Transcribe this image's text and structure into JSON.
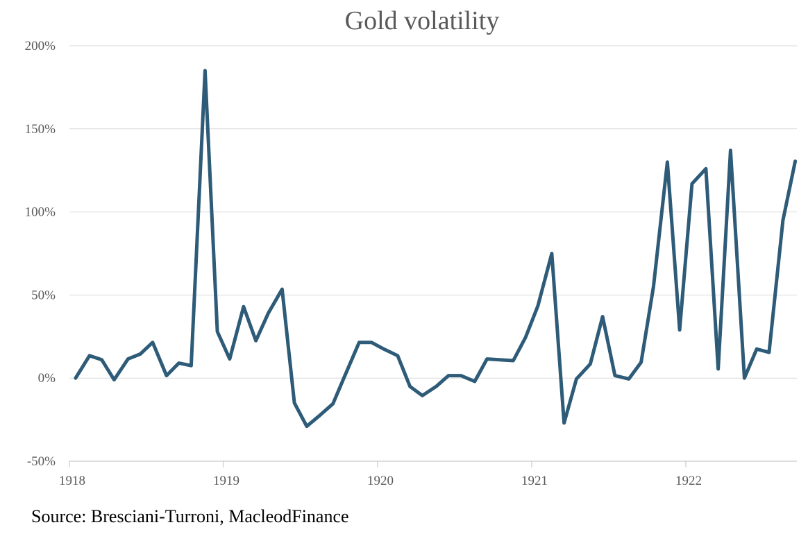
{
  "chart_data": {
    "type": "line",
    "title": "Gold volatility",
    "xlabel": "",
    "ylabel": "",
    "ylim": [
      -50,
      200
    ],
    "y_ticks": [
      -50,
      0,
      50,
      100,
      150,
      200
    ],
    "y_tick_labels": [
      "-50%",
      "0%",
      "50%",
      "100%",
      "150%",
      "200%"
    ],
    "x_ticks": [
      1918,
      1919,
      1920,
      1921,
      1922
    ],
    "x_tick_labels": [
      "1918",
      "1919",
      "1920",
      "1921",
      "1922"
    ],
    "xlim": [
      1918,
      1922.75
    ],
    "grid": true,
    "series": [
      {
        "name": "Gold volatility",
        "color": "#2e5b78",
        "x": [
          1918.04,
          1918.13,
          1918.21,
          1918.29,
          1918.38,
          1918.46,
          1918.54,
          1918.63,
          1918.71,
          1918.79,
          1918.88,
          1918.96,
          1919.04,
          1919.13,
          1919.21,
          1919.29,
          1919.38,
          1919.46,
          1919.54,
          1919.63,
          1919.71,
          1919.79,
          1919.88,
          1919.96,
          1920.04,
          1920.13,
          1920.21,
          1920.29,
          1920.38,
          1920.46,
          1920.54,
          1920.63,
          1920.71,
          1920.79,
          1920.88,
          1920.96,
          1921.04,
          1921.13,
          1921.21,
          1921.29,
          1921.38,
          1921.46,
          1921.54,
          1921.63,
          1921.71,
          1921.79,
          1921.88,
          1921.96,
          1922.04,
          1922.13,
          1922.21,
          1922.29,
          1922.38,
          1922.46,
          1922.54,
          1922.63,
          1922.71
        ],
        "values": [
          0,
          13.5,
          11,
          -1,
          11.5,
          14.5,
          21.5,
          1.5,
          9,
          7.5,
          185,
          28,
          11.5,
          43,
          22.5,
          39,
          53.5,
          -15,
          -29,
          -22,
          -15.5,
          2,
          21.5,
          21.5,
          17.5,
          13.5,
          -5,
          -10.5,
          -5,
          1.5,
          1.5,
          -2,
          11.5,
          11,
          10.5,
          24.5,
          43.5,
          75,
          -27,
          -0.5,
          8.5,
          37,
          1.5,
          -0.5,
          9.5,
          55,
          130,
          29,
          117,
          126,
          5.5,
          137,
          0,
          17.5,
          15.5,
          95,
          130.5
        ]
      }
    ]
  },
  "footer": {
    "source": "Source: Bresciani-Turroni, MacleodFinance"
  }
}
